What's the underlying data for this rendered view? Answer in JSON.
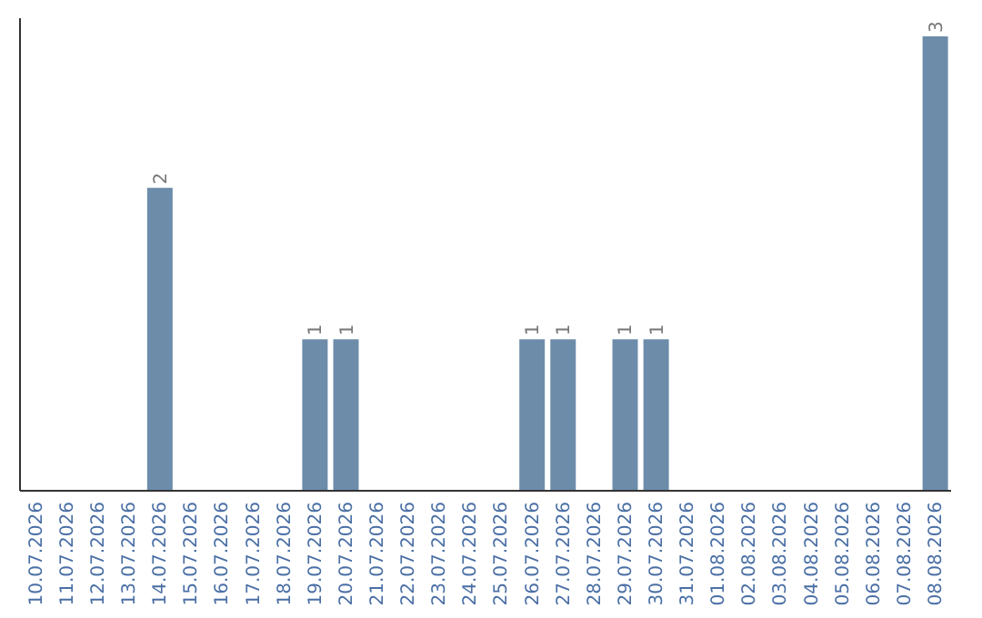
{
  "chart_data": {
    "type": "bar",
    "categories": [
      "10.07.2026",
      "11.07.2026",
      "12.07.2026",
      "13.07.2026",
      "14.07.2026",
      "15.07.2026",
      "16.07.2026",
      "17.07.2026",
      "18.07.2026",
      "19.07.2026",
      "20.07.2026",
      "21.07.2026",
      "22.07.2026",
      "23.07.2026",
      "24.07.2026",
      "25.07.2026",
      "26.07.2026",
      "27.07.2026",
      "28.07.2026",
      "29.07.2026",
      "30.07.2026",
      "31.07.2026",
      "01.08.2026",
      "02.08.2026",
      "03.08.2026",
      "04.08.2026",
      "05.08.2026",
      "06.08.2026",
      "07.08.2026",
      "08.08.2026"
    ],
    "values": [
      0,
      0,
      0,
      0,
      2,
      0,
      0,
      0,
      0,
      1,
      1,
      0,
      0,
      0,
      0,
      0,
      1,
      1,
      0,
      1,
      1,
      0,
      0,
      0,
      0,
      0,
      0,
      0,
      0,
      3
    ],
    "value_labels": [
      null,
      null,
      null,
      null,
      "2",
      null,
      null,
      null,
      null,
      "1",
      "1",
      null,
      null,
      null,
      null,
      null,
      "1",
      "1",
      null,
      "1",
      "1",
      null,
      null,
      null,
      null,
      null,
      null,
      null,
      null,
      "3"
    ],
    "color": "#6c8caa"
  }
}
